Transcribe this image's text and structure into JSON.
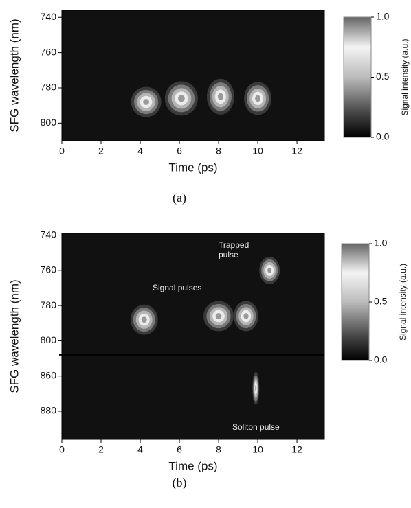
{
  "chart_data": [
    {
      "type": "contour",
      "caption": "(a)",
      "x_label": "Time (ps)",
      "y_label": "SFG wavelength (nm)",
      "xlim": [
        0,
        13.4
      ],
      "xticks": [
        0,
        2,
        4,
        6,
        8,
        10,
        12
      ],
      "ylim": [
        736,
        810
      ],
      "y_inverted": true,
      "yticks": [
        740,
        760,
        780,
        800
      ],
      "colorbar": {
        "label": "Signal intensity (a.u.)",
        "zlim": [
          0,
          1
        ],
        "ticks": [
          {
            "value": 0,
            "label": "0.0"
          },
          {
            "value": 0.5,
            "label": "0.5"
          },
          {
            "value": 1,
            "label": "1.0"
          }
        ]
      },
      "x": [
        4.3,
        6.1,
        8.1,
        10.0
      ],
      "y": [
        788,
        786,
        785,
        786
      ]
    },
    {
      "type": "contour",
      "caption": "(b)",
      "x_label": "Time (ps)",
      "y_label": "SFG wavelength (nm)",
      "xlim": [
        0,
        13.4
      ],
      "xticks": [
        0,
        2,
        4,
        6,
        8,
        10,
        12
      ],
      "ylim": [
        739,
        896
      ],
      "y_inverted": true,
      "axis_break": [
        808,
        848
      ],
      "yticks": [
        740,
        760,
        780,
        800,
        860,
        880
      ],
      "colorbar": {
        "label": "Signal intensity (a.u.)",
        "zlim": [
          0,
          1
        ],
        "ticks": [
          {
            "value": 0,
            "label": "0.0"
          },
          {
            "value": 0.5,
            "label": "0.5"
          },
          {
            "value": 1,
            "label": "1.0"
          }
        ]
      },
      "annotations": [
        "Signal pulses",
        "Trapped pulse",
        "Soliton pulse"
      ],
      "x": [
        4.2,
        8.0,
        9.4,
        10.6,
        9.9
      ],
      "y": [
        788,
        786,
        786,
        760,
        867
      ]
    }
  ]
}
